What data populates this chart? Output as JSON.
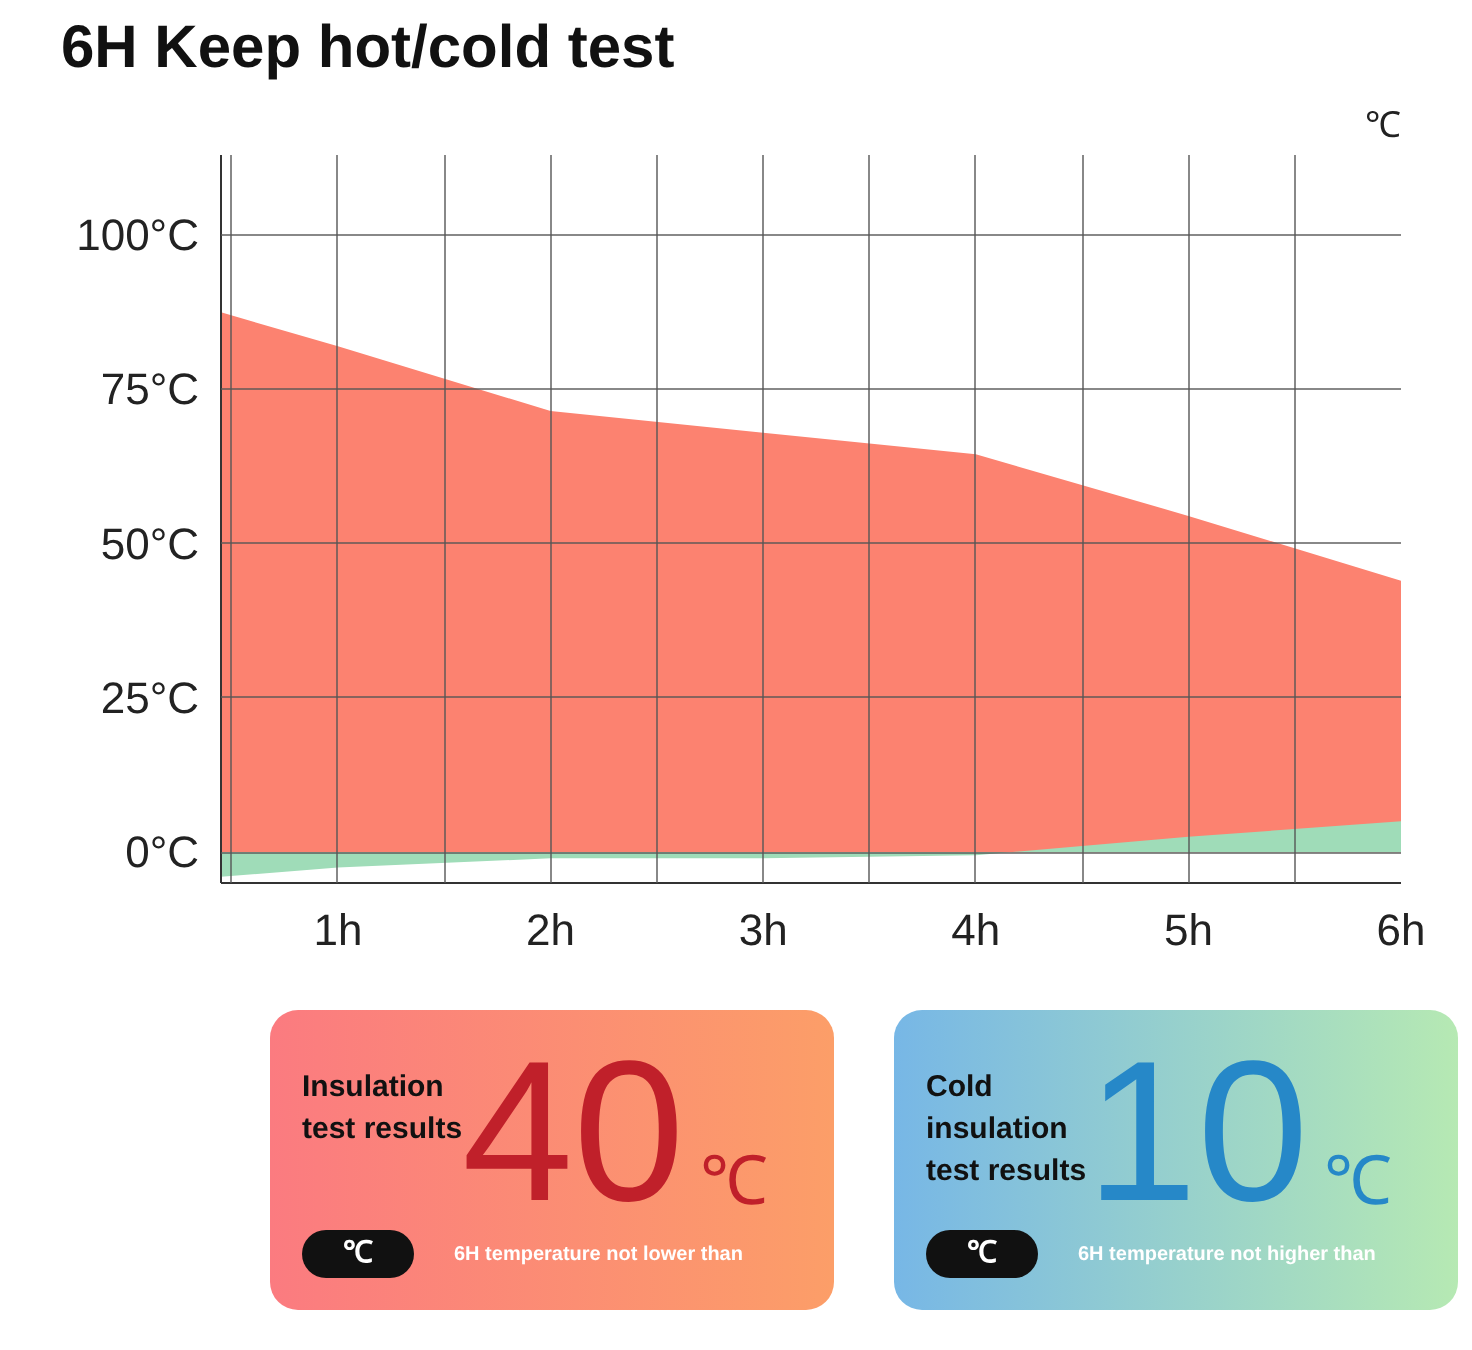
{
  "chart_data": {
    "type": "area",
    "title": "6H Keep hot/cold test",
    "x": [
      0.45,
      1,
      2,
      3,
      4,
      5,
      6
    ],
    "series": [
      {
        "color": "#fc8270",
        "values": [
          87.5,
          82,
          71.5,
          68,
          64.5,
          54.5,
          44
        ]
      },
      {
        "color": "#9fdcb8",
        "values": [
          -4,
          -2.5,
          -1,
          -1,
          -0.5,
          2.5,
          5
        ]
      }
    ],
    "xlim": [
      0.45,
      6
    ],
    "xticks": [
      {
        "value": 0.5,
        "label": null
      },
      {
        "value": 1,
        "label": "1h"
      },
      {
        "value": 1.5,
        "label": null
      },
      {
        "value": 2,
        "label": "2h"
      },
      {
        "value": 2.5,
        "label": null
      },
      {
        "value": 3,
        "label": "3h"
      },
      {
        "value": 3.5,
        "label": null
      },
      {
        "value": 4,
        "label": "4h"
      },
      {
        "value": 4.5,
        "label": null
      },
      {
        "value": 5,
        "label": "5h"
      },
      {
        "value": 5.5,
        "label": null
      },
      {
        "value": 6,
        "label": "6h"
      }
    ],
    "ylim": [
      -5,
      113
    ],
    "yticks": [
      {
        "value": 0,
        "label": "0°C"
      },
      {
        "value": 25,
        "label": "25°C"
      },
      {
        "value": 50,
        "label": "50°C"
      },
      {
        "value": 75,
        "label": "75°C"
      },
      {
        "value": 100,
        "label": "100°C"
      }
    ],
    "grid": true,
    "annotations": [
      "℃",
      "Insulation test results",
      "40",
      "℃",
      "℃",
      "6H temperature not lower than",
      "Cold insulation test results",
      "10",
      "℃",
      "℃",
      "6H temperature not higher than"
    ]
  }
}
